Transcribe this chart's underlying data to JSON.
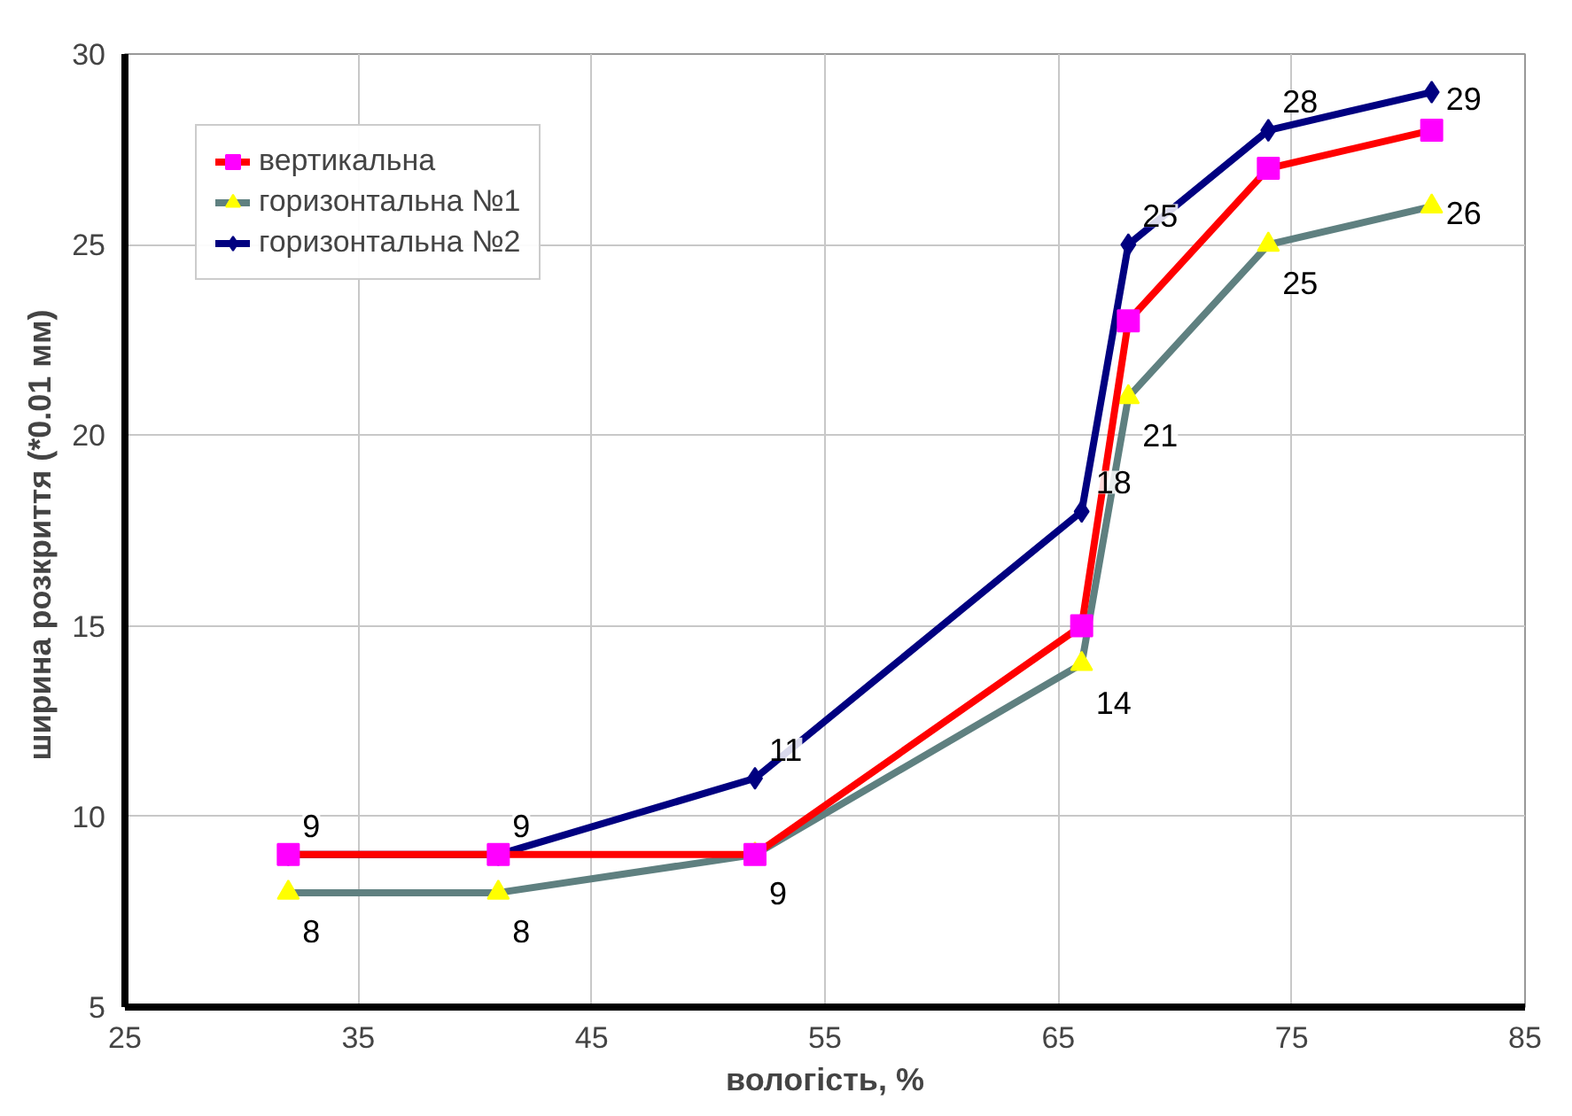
{
  "chart_data": {
    "type": "line",
    "xlabel": "вологість, %",
    "ylabel": "ширина розкриття  (*0.01 мм)",
    "x": [
      32,
      41,
      52,
      66,
      68,
      74,
      81
    ],
    "xlim": [
      25,
      85
    ],
    "xticks": [
      25,
      35,
      45,
      55,
      65,
      75,
      85
    ],
    "ylim": [
      5,
      30
    ],
    "yticks": [
      5,
      10,
      15,
      20,
      25,
      30
    ],
    "grid": true,
    "legend": "top left",
    "line_style": "solid",
    "series": [
      {
        "name": "горизонтальна №2",
        "color": "#000080",
        "marker": "diamond",
        "values": [
          9,
          9,
          11,
          18,
          25,
          28,
          29
        ],
        "value_labels": [
          "9",
          "9",
          "11",
          "18",
          "25",
          "28",
          "29"
        ]
      },
      {
        "name": "горизонтальна №1",
        "color": "#5f8080",
        "marker": "triangle",
        "values": [
          8,
          8,
          9,
          14,
          21,
          25,
          26
        ],
        "value_labels": [
          "8",
          "8",
          "9",
          "14",
          "21",
          "25",
          "26"
        ]
      },
      {
        "name": "вертикальна",
        "color": "#ff0000",
        "marker": "square",
        "values": [
          9,
          9,
          9,
          15,
          23,
          27,
          28
        ]
      }
    ]
  }
}
